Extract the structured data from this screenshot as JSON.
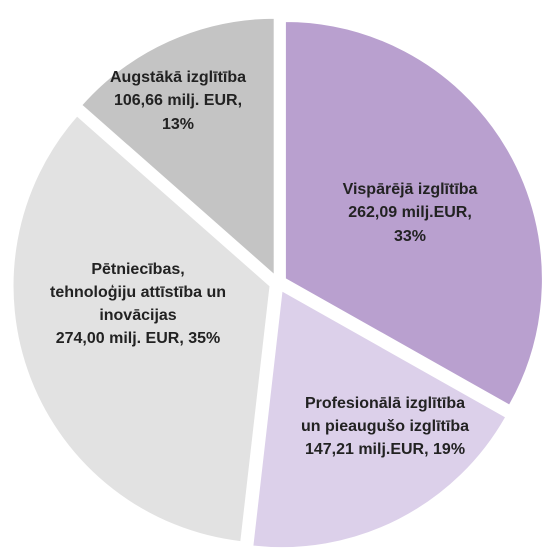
{
  "chart_data": {
    "type": "pie",
    "categories": [
      [
        "Vispārējā izglītība"
      ],
      [
        "Profesionālā izglītība",
        "un pieaugušo izglītība"
      ],
      [
        "Pētniecības,",
        "tehnoloģiju attīstība un",
        "inovācijas"
      ],
      [
        "Augstākā izglītība"
      ]
    ],
    "values": [
      262.09,
      147.21,
      274.0,
      106.66
    ],
    "value_labels": [
      "262,09 milj.EUR,",
      "147,21 milj.EUR,",
      "274,00 milj. EUR,",
      "106,66 milj. EUR,"
    ],
    "percents": [
      33,
      19,
      35,
      13
    ],
    "percent_labels": [
      "33%",
      "19%",
      "35%",
      "13%"
    ],
    "colors": [
      "#b9a0cf",
      "#dcd0ea",
      "#e2e2e2",
      "#c4c4c4"
    ]
  }
}
